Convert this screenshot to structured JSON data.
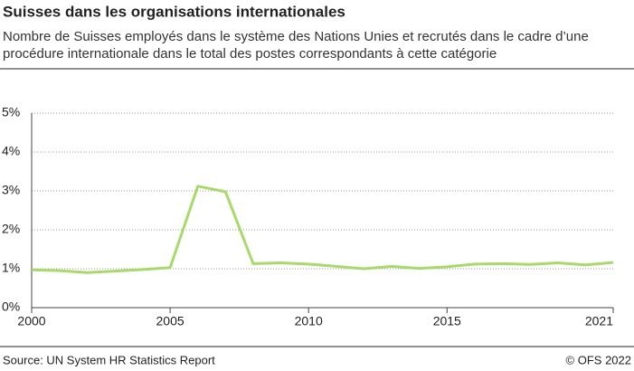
{
  "chart_data": {
    "type": "line",
    "title": "Suisses dans les organisations internationales",
    "subtitle": [
      "Nombre de Suisses employés dans le système des Nations Unies et recrutés dans le cadre d’une",
      "procédure internationale dans le total des postes correspondants à cette catégorie"
    ],
    "x": [
      2000,
      2001,
      2002,
      2003,
      2004,
      2005,
      2006,
      2007,
      2008,
      2009,
      2010,
      2011,
      2012,
      2013,
      2014,
      2015,
      2016,
      2017,
      2018,
      2019,
      2020,
      2021
    ],
    "values": [
      0.97,
      0.95,
      0.9,
      0.94,
      0.98,
      1.03,
      3.12,
      2.98,
      1.13,
      1.15,
      1.12,
      1.06,
      1.0,
      1.06,
      1.01,
      1.05,
      1.12,
      1.13,
      1.11,
      1.15,
      1.1,
      1.16
    ],
    "color": "#a8d96b",
    "xlim": [
      2000,
      2021
    ],
    "xticks": [
      2000,
      2005,
      2010,
      2015,
      2021
    ],
    "ylim": [
      0,
      5
    ],
    "yticks": [
      {
        "value": 0,
        "label": "0%"
      },
      {
        "value": 1,
        "label": "1%"
      },
      {
        "value": 2,
        "label": "2%"
      },
      {
        "value": 3,
        "label": "3%"
      },
      {
        "value": 4,
        "label": "4%"
      },
      {
        "value": 5,
        "label": "5%"
      }
    ],
    "grid": true,
    "source": "Source: UN System HR Statistics Report",
    "credit": "© OFS 2022"
  }
}
